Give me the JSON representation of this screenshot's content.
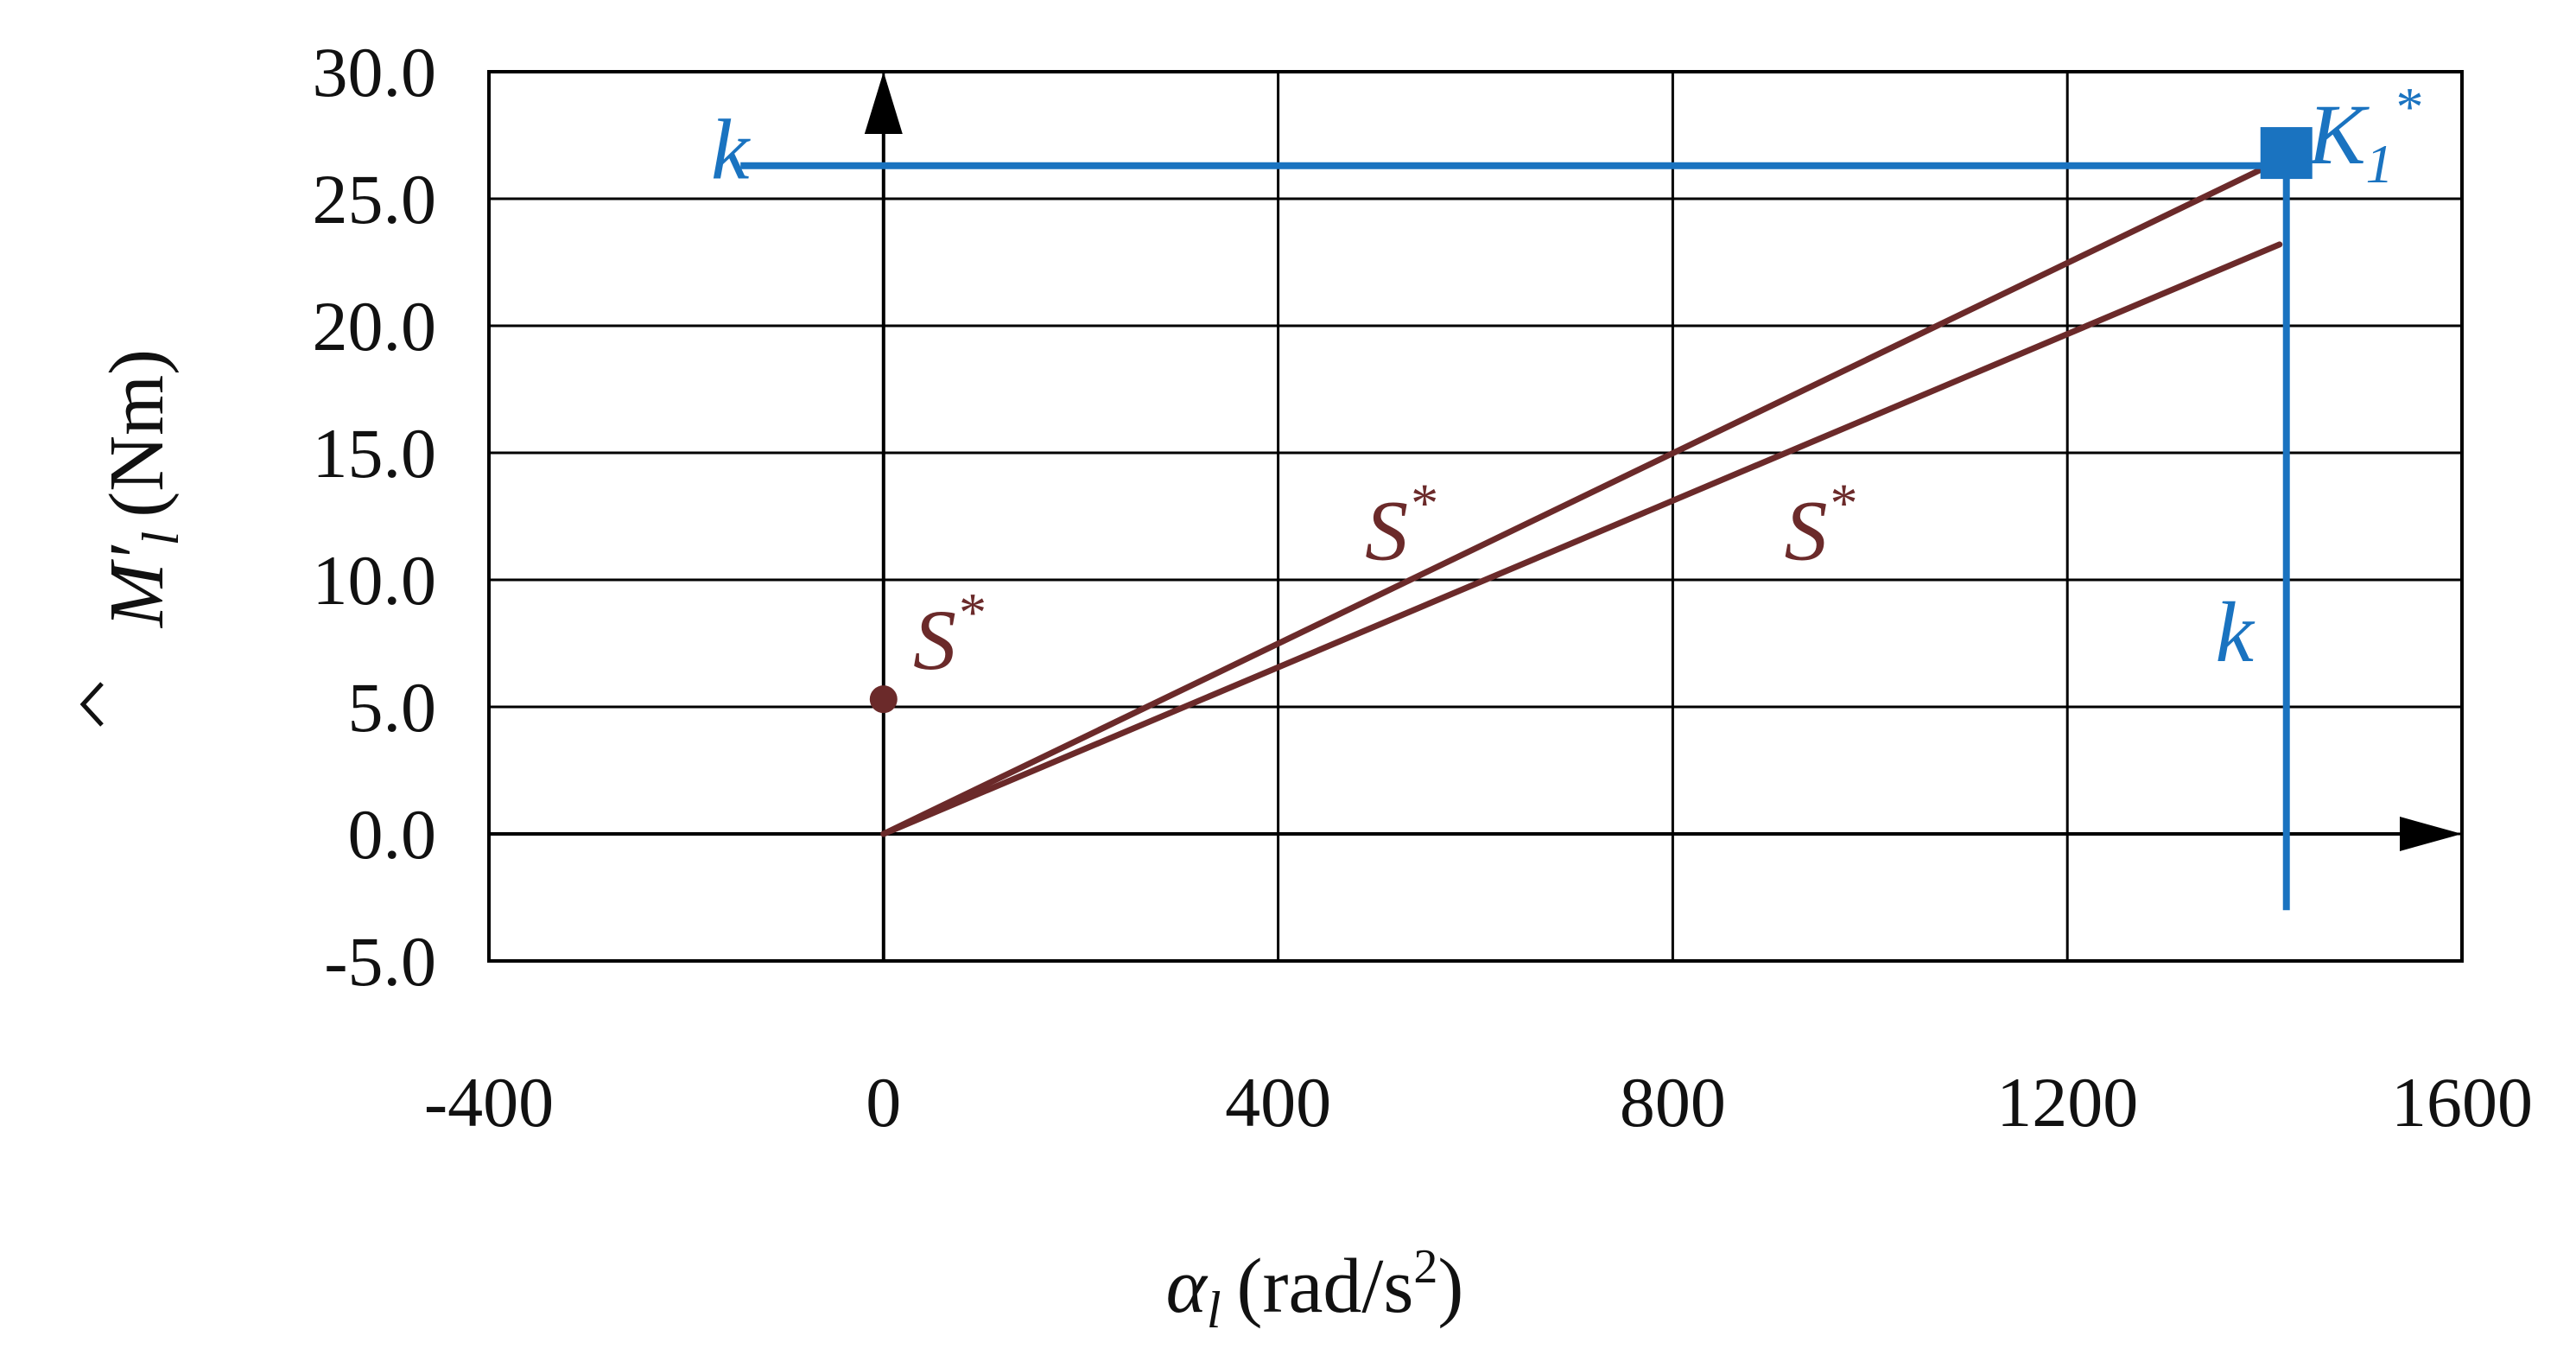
{
  "chart_data": {
    "type": "line",
    "xlabel": {
      "symbol": "α",
      "sub": "l",
      "unit_pre": "(rad/s",
      "unit_sup": "2",
      "unit_post": ")"
    },
    "ylabel": {
      "symbol": "M",
      "prime": "′",
      "sub": "l",
      "unit": "(Nm)"
    },
    "xlim": [
      -400,
      1600
    ],
    "ylim": [
      -5,
      30
    ],
    "x_ticks": [
      -400,
      0,
      400,
      800,
      1200,
      1600
    ],
    "y_ticks": [
      -5,
      0,
      5,
      10,
      15,
      20,
      25,
      30
    ],
    "x_tick_labels": [
      "-400",
      "0",
      "400",
      "800",
      "1200",
      "1600"
    ],
    "y_tick_labels": [
      "-5.0",
      "0.0",
      "5.0",
      "10.0",
      "15.0",
      "20.0",
      "25.0",
      "30.0"
    ],
    "grid": true,
    "series": [
      {
        "x": [
          0,
          1415
        ],
        "y": [
          0,
          26.5
        ]
      },
      {
        "x": [
          0,
          1415
        ],
        "y": [
          0,
          23.2
        ]
      }
    ],
    "points": [
      {
        "x": 0,
        "y": 5.3,
        "shape": "dot",
        "color": "#6b2a2a"
      },
      {
        "x": 1422,
        "y": 26.8,
        "shape": "square",
        "color": "#1a73c0"
      }
    ],
    "limit_lines": [
      {
        "orientation": "horizontal",
        "y": 26.3,
        "x_from": -145,
        "x_to": 1422
      },
      {
        "orientation": "vertical",
        "x": 1422,
        "y_from": 26.8,
        "y_to": -3.0
      }
    ],
    "annotations": [
      {
        "id": "k-h",
        "text": "k",
        "x": -175,
        "y": 25.8,
        "color": "#1a73c0"
      },
      {
        "id": "k-v",
        "text": "k",
        "x": 1350,
        "y": 6.8,
        "color": "#1a73c0"
      },
      {
        "id": "K1",
        "text": "K",
        "sub": "1",
        "sup": "*",
        "x": 1444,
        "y": 26.4,
        "color": "#1a73c0"
      },
      {
        "id": "S-dot",
        "text": "S",
        "sup": "*",
        "x": 30,
        "y": 6.5,
        "color": "#6b2a2a"
      },
      {
        "id": "S-upper",
        "text": "S",
        "sup": "*",
        "x": 488,
        "y": 10.8,
        "color": "#6b2a2a"
      },
      {
        "id": "S-lower",
        "text": "S",
        "sup": "*",
        "x": 913,
        "y": 10.8,
        "color": "#6b2a2a"
      }
    ],
    "colors": {
      "series": "#6b2a2a",
      "limit": "#1a73c0",
      "grid": "#000000",
      "axis": "#000000"
    }
  }
}
